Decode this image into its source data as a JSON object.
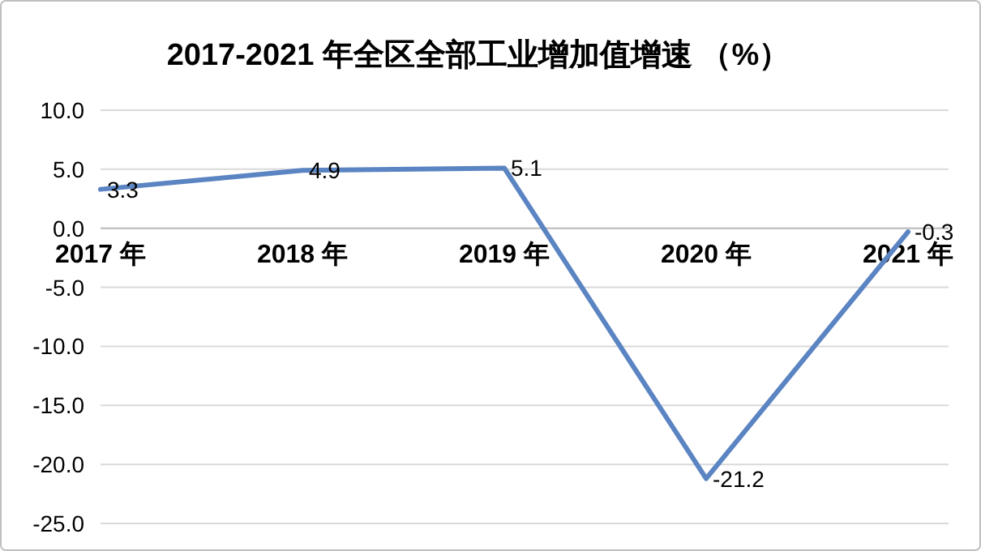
{
  "chart_data": {
    "type": "line",
    "title": "2017-2021 年全区全部工业增加值增速 （%）",
    "categories": [
      "2017 年",
      "2018 年",
      "2019 年",
      "2020 年",
      "2021 年"
    ],
    "series": [
      {
        "color": "#5a84c2",
        "values": [
          3.3,
          4.9,
          5.1,
          -21.2,
          -0.3
        ]
      }
    ],
    "ylim": [
      -25,
      10
    ],
    "yticks": [
      {
        "value": 10,
        "label": "10.0"
      },
      {
        "value": 5,
        "label": "5.0"
      },
      {
        "value": 0,
        "label": "0.0"
      },
      {
        "value": -5,
        "label": "-5.0"
      },
      {
        "value": -10,
        "label": "-10.0"
      },
      {
        "value": -15,
        "label": "-15.0"
      },
      {
        "value": -20,
        "label": "-20.0"
      },
      {
        "value": -25,
        "label": "-25.0"
      }
    ],
    "grid": "y",
    "data_labels": true,
    "marker": "none",
    "line_style": "solid"
  }
}
